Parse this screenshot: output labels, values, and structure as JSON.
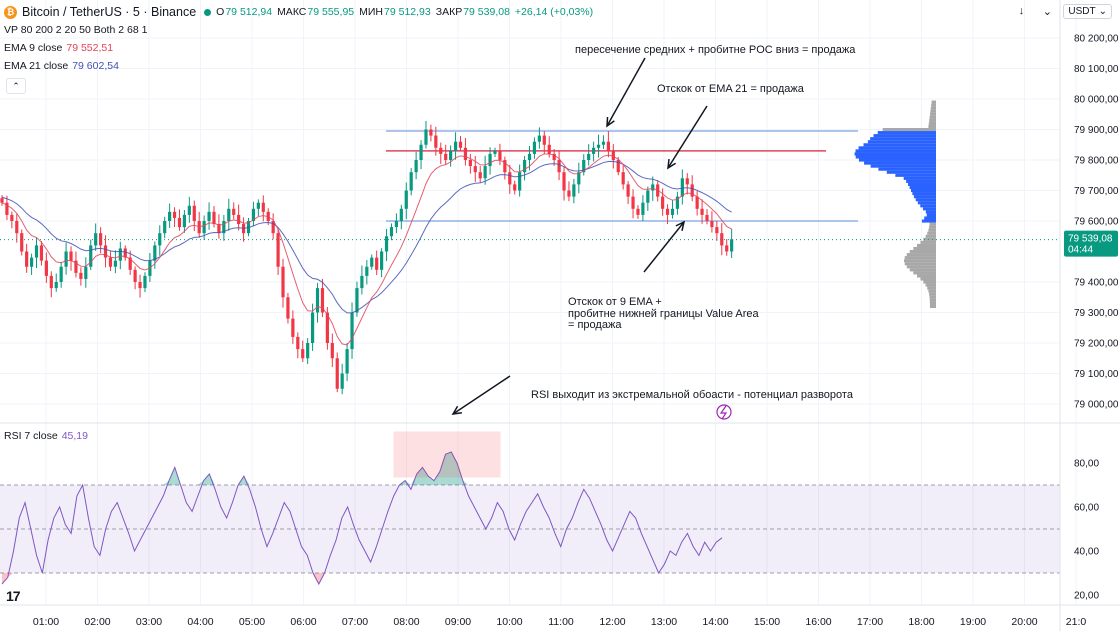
{
  "header": {
    "symbol": "Bitcoin / TetherUS · 5 · Binance",
    "ohlc": [
      {
        "label": "О",
        "value": "79 512,94"
      },
      {
        "label": "МАКС",
        "value": "79 555,95"
      },
      {
        "label": "МИН",
        "value": "79 512,93"
      },
      {
        "label": "ЗАКР",
        "value": "79 539,08"
      }
    ],
    "change": "+26,14 (+0,03%)"
  },
  "indicators": {
    "vp": "VP 80 200 2 20 50 Both 2 68 1",
    "ema9": {
      "label": "EMA 9 close",
      "value": "79 552,51",
      "color": "#e0445a"
    },
    "ema21": {
      "label": "EMA 21 close",
      "value": "79 602,54",
      "color": "#3f51b5"
    },
    "rsi": {
      "label": "RSI 7 close",
      "value": "45,19",
      "color": "#7e57c2"
    }
  },
  "toolbar": {
    "currency": "USDT"
  },
  "annotations": {
    "note1": "пересечение средних + пробитне POC вниз = продажа",
    "note2": "Отскок от EMA 21 = продажа",
    "note3_line1": "Отскок от 9 EMA +",
    "note3_line2": "пробитне нижней границы Value Area",
    "note3_line3": "= продажа",
    "note4": "RSI выходит из экстремальной обoасти - потенциал разворота"
  },
  "chart_data": {
    "type": "candlestick",
    "price_axis": {
      "ticks": [
        80200,
        80100,
        80000,
        79900,
        79800,
        79700,
        79600,
        79400,
        79300,
        79200,
        79100,
        79000
      ],
      "tick_labels": [
        "80 200,00",
        "80 100,00",
        "80 000,00",
        "79 900,00",
        "79 800,00",
        "79 700,00",
        "79 600,00",
        "79 400,00",
        "79 300,00",
        "79 200,00",
        "79 100,00",
        "79 000,00"
      ],
      "last_price_label": "79 539,08",
      "countdown_label": "04:44",
      "last_price": 79539.08
    },
    "time_axis": {
      "labels": [
        "01:00",
        "02:00",
        "03:00",
        "04:00",
        "05:00",
        "06:00",
        "07:00",
        "08:00",
        "09:00",
        "10:00",
        "11:00",
        "12:00",
        "13:00",
        "14:00",
        "15:00",
        "16:00",
        "17:00",
        "18:00",
        "19:00",
        "20:00",
        "21:0"
      ]
    },
    "levels": {
      "value_area_high": 79895,
      "poc": 79830,
      "value_area_low": 79600
    },
    "rsi_axis": {
      "ticks": [
        80,
        60,
        40,
        20
      ],
      "tick_labels": [
        "80,00",
        "60,00",
        "40,00",
        "20,00"
      ],
      "upper_band": 70,
      "lower_band": 30,
      "mid": 50
    },
    "close_path": [
      79660,
      79620,
      79600,
      79560,
      79500,
      79450,
      79480,
      79520,
      79470,
      79420,
      79380,
      79400,
      79450,
      79500,
      79470,
      79430,
      79410,
      79450,
      79520,
      79560,
      79520,
      79480,
      79450,
      79470,
      79510,
      79480,
      79440,
      79400,
      79380,
      79420,
      79470,
      79520,
      79560,
      79600,
      79630,
      79610,
      79580,
      79620,
      79650,
      79600,
      79560,
      79600,
      79630,
      79590,
      79560,
      79600,
      79640,
      79620,
      79590,
      79560,
      79600,
      79640,
      79660,
      79630,
      79600,
      79560,
      79450,
      79350,
      79280,
      79220,
      79180,
      79150,
      79200,
      79300,
      79380,
      79300,
      79200,
      79150,
      79050,
      79100,
      79180,
      79300,
      79380,
      79420,
      79450,
      79480,
      79440,
      79500,
      79550,
      79580,
      79600,
      79640,
      79700,
      79760,
      79800,
      79850,
      79900,
      79880,
      79840,
      79820,
      79800,
      79830,
      79860,
      79840,
      79800,
      79780,
      79760,
      79740,
      79780,
      79820,
      79830,
      79800,
      79760,
      79720,
      79700,
      79760,
      79800,
      79820,
      79860,
      79880,
      79850,
      79820,
      79800,
      79760,
      79700,
      79680,
      79720,
      79760,
      79800,
      79820,
      79840,
      79850,
      79860,
      79830,
      79800,
      79760,
      79720,
      79680,
      79640,
      79620,
      79660,
      79700,
      79720,
      79680,
      79640,
      79620,
      79640,
      79680,
      79740,
      79720,
      79680,
      79640,
      79620,
      79600,
      79580,
      79560,
      79520,
      79500,
      79540
    ],
    "rsi_path": [
      25,
      28,
      40,
      55,
      62,
      50,
      38,
      30,
      45,
      55,
      60,
      52,
      48,
      65,
      70,
      55,
      42,
      38,
      50,
      58,
      62,
      55,
      48,
      40,
      45,
      50,
      55,
      60,
      65,
      72,
      78,
      70,
      62,
      58,
      65,
      72,
      75,
      68,
      60,
      55,
      62,
      70,
      74,
      68,
      60,
      50,
      42,
      48,
      55,
      62,
      58,
      50,
      42,
      38,
      30,
      25,
      30,
      38,
      45,
      55,
      60,
      52,
      45,
      40,
      35,
      42,
      50,
      58,
      65,
      70,
      72,
      68,
      75,
      78,
      74,
      72,
      76,
      84,
      85,
      80,
      72,
      65,
      60,
      55,
      50,
      55,
      62,
      58,
      50,
      45,
      52,
      58,
      62,
      66,
      60,
      55,
      48,
      42,
      50,
      55,
      62,
      68,
      64,
      58,
      52,
      45,
      40,
      46,
      52,
      58,
      55,
      48,
      42,
      36,
      30,
      34,
      40,
      38,
      44,
      48,
      42,
      38,
      44,
      40,
      44,
      46
    ]
  }
}
